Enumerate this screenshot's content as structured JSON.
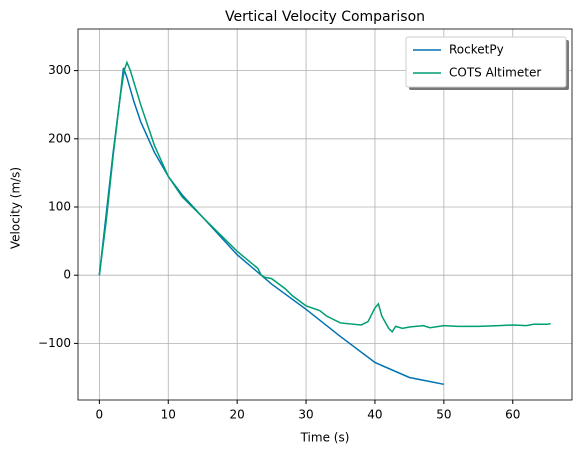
{
  "chart_data": {
    "type": "line",
    "title": "Vertical Velocity Comparison",
    "x_label": "Time (s)",
    "y_label": "Velocity (m/s)",
    "xlim": [
      -3.1,
      68.6
    ],
    "ylim": [
      -183,
      361
    ],
    "xticks": [
      0,
      10,
      20,
      30,
      40,
      50,
      60
    ],
    "yticks": [
      {
        "value": -100,
        "label": "−100"
      },
      0,
      100,
      200,
      300
    ],
    "grid": true,
    "legend": "upper right",
    "series": [
      {
        "name": "RocketPy",
        "color": "#0072b2",
        "x": [
          0,
          1,
          2,
          3,
          3.5,
          4,
          5,
          6,
          8,
          10,
          12,
          15,
          20,
          25,
          30,
          35,
          40,
          45,
          50
        ],
        "values": [
          0,
          90,
          180,
          260,
          304,
          290,
          255,
          225,
          180,
          145,
          118,
          85,
          30,
          -13,
          -50,
          -90,
          -128,
          -150,
          -160
        ]
      },
      {
        "name": "COTS Altimeter",
        "color": "#009e73",
        "x": [
          0,
          1,
          2,
          3,
          3.6,
          4,
          4.5,
          6,
          8,
          10,
          12,
          15,
          20,
          23,
          23.5,
          24,
          25,
          27,
          28,
          30,
          32,
          33,
          35,
          38,
          39,
          40,
          40.5,
          41,
          42,
          42.5,
          43,
          44,
          45,
          47,
          48,
          50,
          52,
          55,
          58,
          60,
          62,
          63,
          65,
          65.5
        ],
        "values": [
          0,
          80,
          175,
          260,
          300,
          312,
          300,
          250,
          190,
          145,
          115,
          85,
          35,
          10,
          0,
          -3,
          -5,
          -20,
          -30,
          -45,
          -52,
          -60,
          -70,
          -73,
          -68,
          -48,
          -42,
          -60,
          -78,
          -83,
          -75,
          -78,
          -76,
          -74,
          -77,
          -74,
          -75,
          -75,
          -74,
          -73,
          -74,
          -72,
          -72,
          -71
        ]
      }
    ]
  }
}
